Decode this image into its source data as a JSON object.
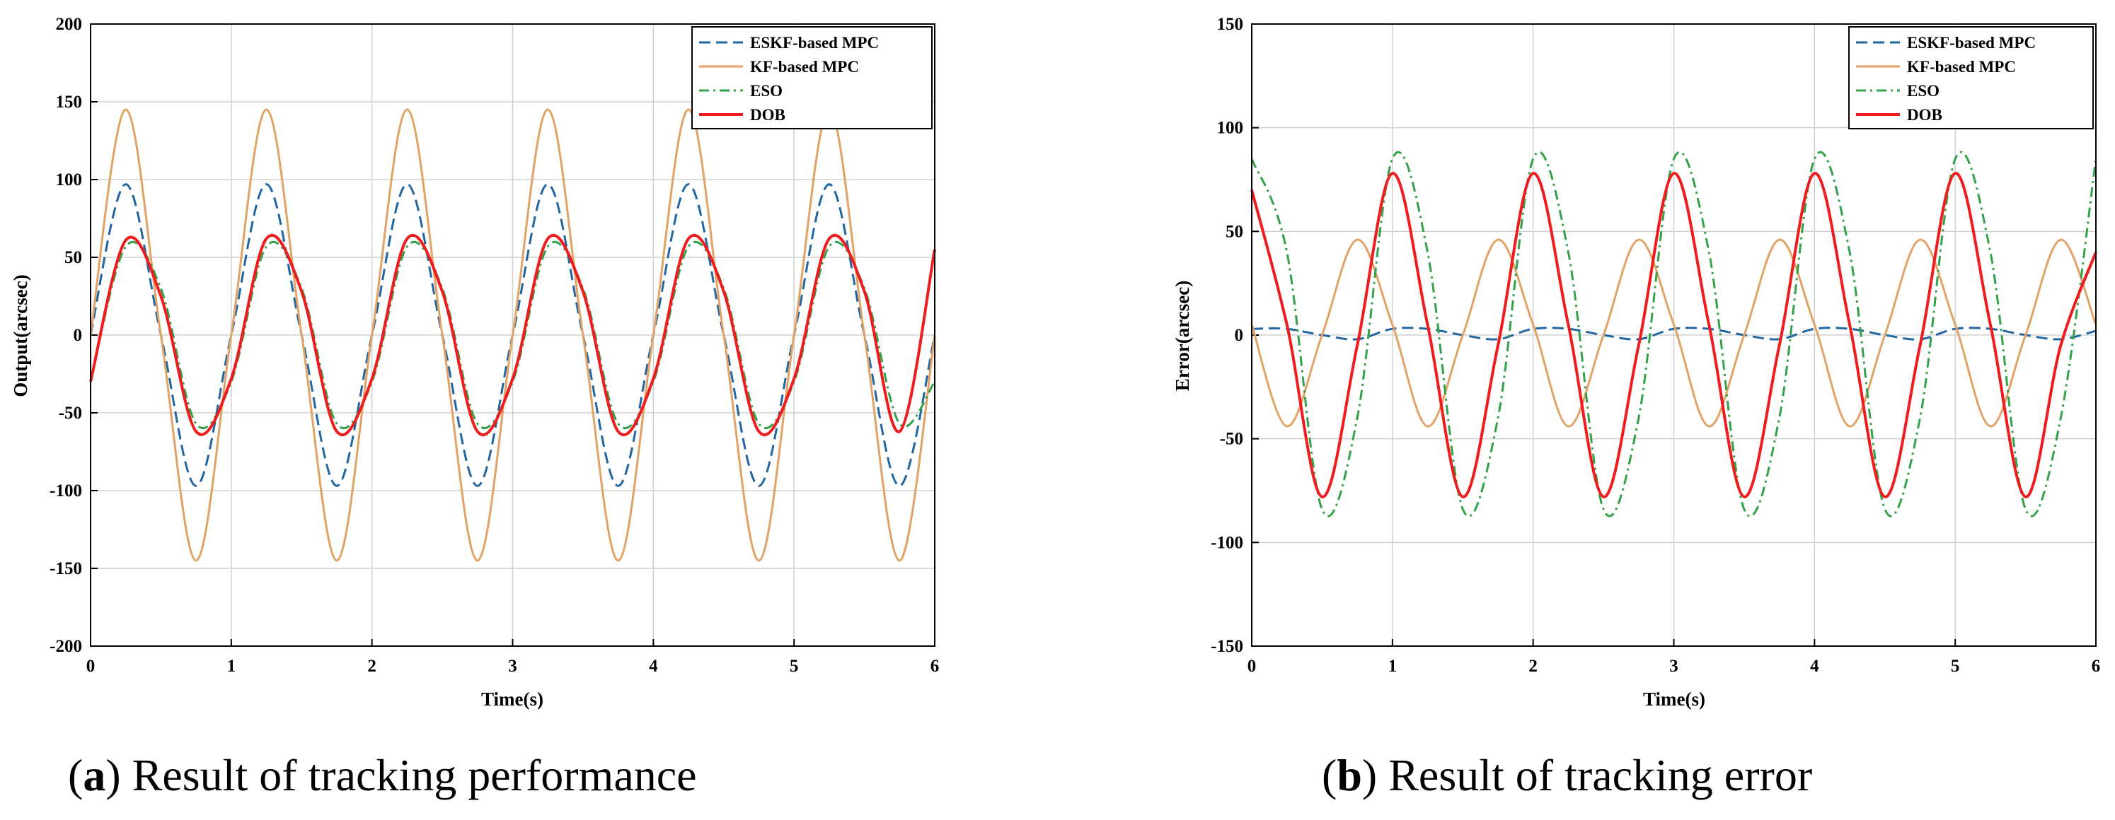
{
  "chart_data": [
    {
      "type": "line",
      "caption_tag": "a",
      "caption_text": " Result of tracking performance",
      "xlabel": "Time(s)",
      "ylabel": "Output(arcsec)",
      "xlim": [
        0,
        6
      ],
      "ylim": [
        -200,
        200
      ],
      "xticks": [
        "0",
        "1",
        "2",
        "3",
        "4",
        "5",
        "6"
      ],
      "yticks": [
        "200",
        "150",
        "100",
        "50",
        "0",
        "-50",
        "-100",
        "-150",
        "-200"
      ],
      "grid": true,
      "legend_position": "top-right",
      "x": [
        0,
        0.25,
        0.5,
        0.75,
        1.0,
        1.25,
        1.5,
        1.75,
        2.0,
        2.25,
        2.5,
        2.75,
        3.0,
        3.25,
        3.5,
        3.75,
        4.0,
        4.25,
        4.5,
        4.75,
        5.0,
        5.25,
        5.5,
        5.75,
        6.0
      ],
      "series": [
        {
          "name": "ESKF-based MPC",
          "color": "#2166a0",
          "dash": "dashed",
          "values": [
            0,
            97,
            0,
            -97,
            0,
            97,
            0,
            -97,
            0,
            97,
            0,
            -97,
            0,
            97,
            0,
            -97,
            0,
            97,
            0,
            -97,
            0,
            97,
            0,
            -97,
            0
          ]
        },
        {
          "name": "KF-based MPC",
          "color": "#e3a265",
          "dash": "solid",
          "values": [
            0,
            145,
            0,
            -145,
            0,
            145,
            0,
            -145,
            0,
            145,
            0,
            -145,
            0,
            145,
            0,
            -145,
            0,
            145,
            0,
            -145,
            0,
            145,
            0,
            -145,
            0
          ]
        },
        {
          "name": "ESO",
          "color": "#33a04a",
          "dash": "dashdot",
          "values": [
            -30,
            57,
            30,
            -57,
            -30,
            57,
            30,
            -57,
            -30,
            57,
            30,
            -57,
            -30,
            57,
            30,
            -57,
            -30,
            57,
            30,
            -57,
            -30,
            57,
            30,
            -57,
            -30
          ]
        },
        {
          "name": "DOB",
          "color": "#ee1c1c",
          "dash": "solid",
          "values": [
            -30,
            61,
            25,
            -62,
            -28,
            62,
            28,
            -62,
            -28,
            62,
            28,
            -62,
            -28,
            62,
            28,
            -62,
            -28,
            62,
            28,
            -62,
            -28,
            62,
            28,
            -62,
            55
          ]
        }
      ]
    },
    {
      "type": "line",
      "caption_tag": "b",
      "caption_text": " Result of tracking error",
      "xlabel": "Time(s)",
      "ylabel": "Error(arcsec)",
      "xlim": [
        0,
        6
      ],
      "ylim": [
        -150,
        150
      ],
      "xticks": [
        "0",
        "1",
        "2",
        "3",
        "4",
        "5",
        "6"
      ],
      "yticks": [
        "150",
        "100",
        "50",
        "0",
        "-50",
        "-100",
        "-150"
      ],
      "grid": true,
      "legend_position": "top-right",
      "x": [
        0,
        0.25,
        0.5,
        0.75,
        1.0,
        1.25,
        1.5,
        1.75,
        2.0,
        2.25,
        2.5,
        2.75,
        3.0,
        3.25,
        3.5,
        3.75,
        4.0,
        4.25,
        4.5,
        4.75,
        5.0,
        5.25,
        5.5,
        5.75,
        6.0
      ],
      "series": [
        {
          "name": "ESKF-based MPC",
          "color": "#2166a0",
          "dash": "dashed",
          "values": [
            3,
            3,
            0,
            -2,
            3,
            3,
            0,
            -2,
            3,
            3,
            0,
            -2,
            3,
            3,
            0,
            -2,
            3,
            3,
            0,
            -2,
            3,
            3,
            0,
            -2,
            2
          ]
        },
        {
          "name": "KF-based MPC",
          "color": "#e3a265",
          "dash": "solid",
          "values": [
            5,
            -44,
            0,
            46,
            5,
            -44,
            0,
            46,
            5,
            -44,
            0,
            46,
            5,
            -44,
            0,
            46,
            5,
            -44,
            0,
            46,
            5,
            -44,
            0,
            46,
            5
          ]
        },
        {
          "name": "ESO",
          "color": "#33a04a",
          "dash": "dashdot",
          "values": [
            85,
            40,
            -84,
            -40,
            85,
            40,
            -84,
            -40,
            85,
            40,
            -84,
            -40,
            85,
            40,
            -84,
            -40,
            85,
            40,
            -84,
            -40,
            85,
            40,
            -84,
            -40,
            85
          ]
        },
        {
          "name": "DOB",
          "color": "#ee1c1c",
          "dash": "solid",
          "values": [
            70,
            5,
            -78,
            -5,
            78,
            5,
            -78,
            -5,
            78,
            5,
            -78,
            -5,
            78,
            5,
            -78,
            -5,
            78,
            5,
            -78,
            -5,
            78,
            5,
            -78,
            -5,
            40
          ]
        }
      ]
    }
  ]
}
